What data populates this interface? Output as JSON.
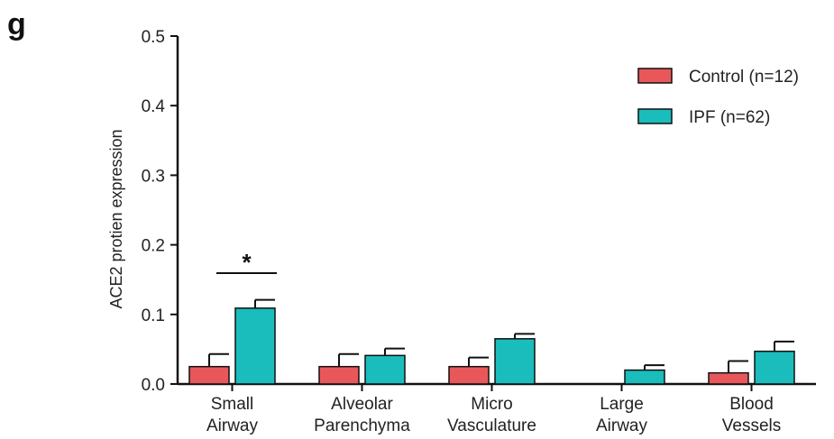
{
  "panel_label": "g",
  "chart_data": {
    "type": "bar",
    "title": "",
    "ylabel": "ACE2 protien expression",
    "xlabel": "",
    "ylim": [
      0,
      0.5
    ],
    "yticks": [
      "0.0",
      "0.1",
      "0.2",
      "0.3",
      "0.4",
      "0.5"
    ],
    "categories": [
      [
        "Small",
        "Airway"
      ],
      [
        "Alveolar",
        "Parenchyma"
      ],
      [
        "Micro",
        "Vasculature"
      ],
      [
        "Large",
        "Airway"
      ],
      [
        "Blood",
        "Vessels"
      ]
    ],
    "series": [
      {
        "name": "Control (n=12)",
        "color": "#e8585a",
        "values": [
          0.025,
          0.025,
          0.025,
          0.0,
          0.016
        ],
        "errors": [
          0.018,
          0.018,
          0.013,
          0.0,
          0.017
        ]
      },
      {
        "name": "IPF (n=62)",
        "color": "#1bbcbc",
        "values": [
          0.109,
          0.041,
          0.065,
          0.02,
          0.047
        ],
        "errors": [
          0.012,
          0.01,
          0.007,
          0.007,
          0.014
        ]
      }
    ],
    "legend_position": "top-right",
    "annotations": [
      {
        "category_index": 0,
        "text": "*"
      }
    ]
  }
}
